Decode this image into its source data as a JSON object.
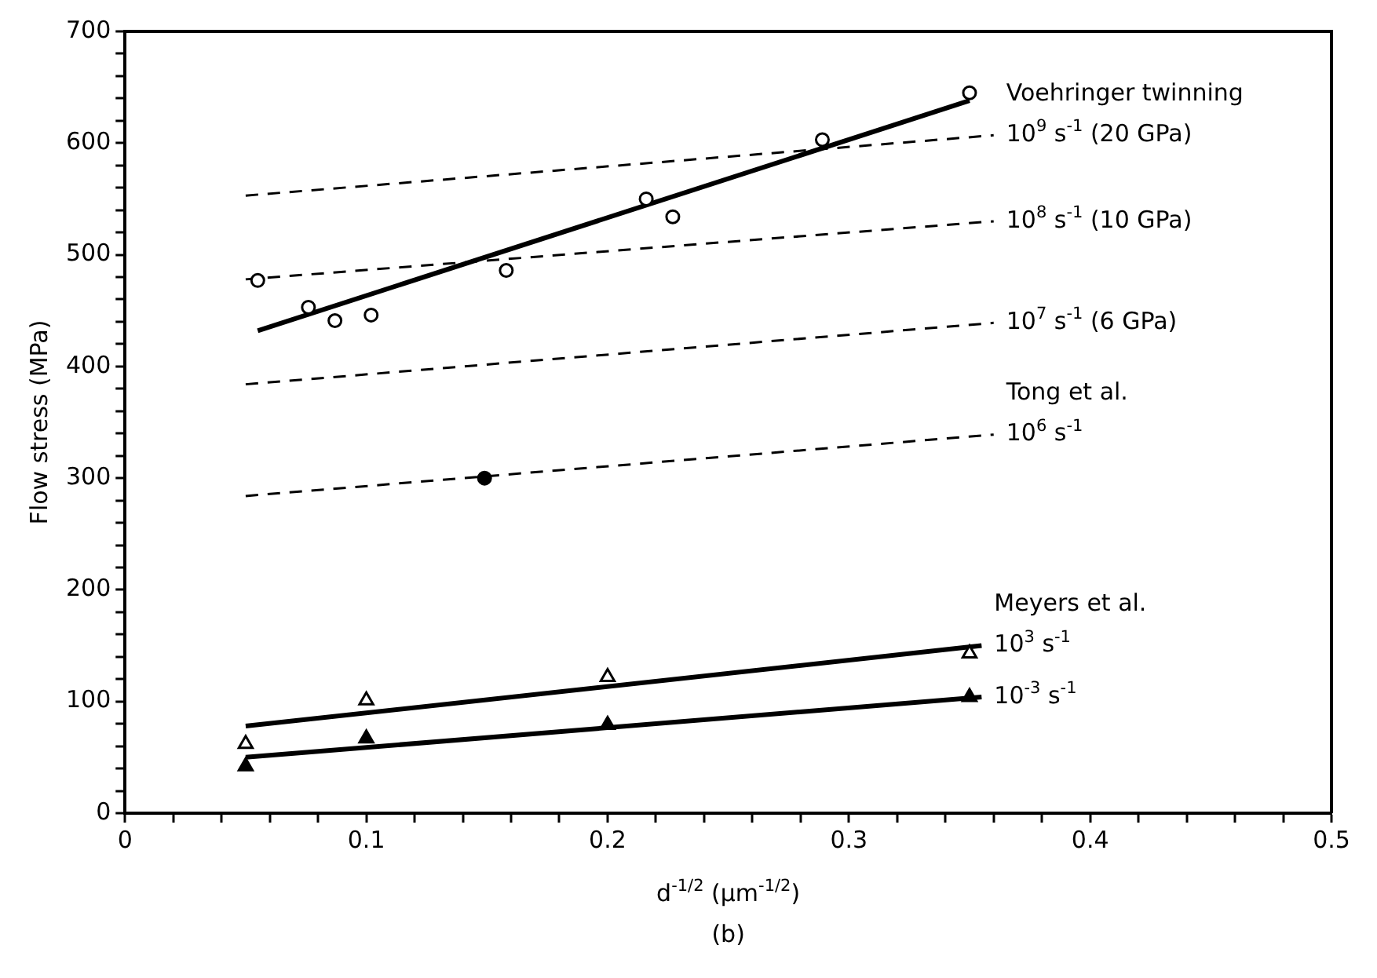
{
  "chart_data": {
    "type": "scatter",
    "ylabel": "Flow stress (MPa)",
    "xlabel": "d$^{-1/2}$ (μm$^{-1/2}$)",
    "xlim": [
      0,
      0.5
    ],
    "ylim": [
      0,
      700
    ],
    "xticks": [
      0,
      {
        "value": 0.02,
        "label": null
      },
      {
        "value": 0.04,
        "label": null
      },
      {
        "value": 0.06,
        "label": null
      },
      {
        "value": 0.08,
        "label": null
      },
      0.1,
      {
        "value": 0.12,
        "label": null
      },
      {
        "value": 0.14,
        "label": null
      },
      {
        "value": 0.16,
        "label": null
      },
      {
        "value": 0.18,
        "label": null
      },
      0.2,
      {
        "value": 0.22,
        "label": null
      },
      {
        "value": 0.24,
        "label": null
      },
      {
        "value": 0.26,
        "label": null
      },
      {
        "value": 0.28,
        "label": null
      },
      0.3,
      {
        "value": 0.32,
        "label": null
      },
      {
        "value": 0.34,
        "label": null
      },
      {
        "value": 0.36,
        "label": null
      },
      {
        "value": 0.38,
        "label": null
      },
      0.4,
      {
        "value": 0.42,
        "label": null
      },
      {
        "value": 0.44,
        "label": null
      },
      {
        "value": 0.46,
        "label": null
      },
      {
        "value": 0.48,
        "label": null
      },
      0.5
    ],
    "yticks": [
      0,
      {
        "value": 20,
        "label": null
      },
      {
        "value": 40,
        "label": null
      },
      {
        "value": 60,
        "label": null
      },
      {
        "value": 80,
        "label": null
      },
      100,
      {
        "value": 120,
        "label": null
      },
      {
        "value": 140,
        "label": null
      },
      {
        "value": 160,
        "label": null
      },
      {
        "value": 180,
        "label": null
      },
      200,
      {
        "value": 220,
        "label": null
      },
      {
        "value": 240,
        "label": null
      },
      {
        "value": 260,
        "label": null
      },
      {
        "value": 280,
        "label": null
      },
      300,
      {
        "value": 320,
        "label": null
      },
      {
        "value": 340,
        "label": null
      },
      {
        "value": 360,
        "label": null
      },
      {
        "value": 380,
        "label": null
      },
      400,
      {
        "value": 420,
        "label": null
      },
      {
        "value": 440,
        "label": null
      },
      {
        "value": 460,
        "label": null
      },
      {
        "value": 480,
        "label": null
      },
      500,
      {
        "value": 520,
        "label": null
      },
      {
        "value": 540,
        "label": null
      },
      {
        "value": 560,
        "label": null
      },
      {
        "value": 580,
        "label": null
      },
      600,
      {
        "value": 620,
        "label": null
      },
      {
        "value": 640,
        "label": null
      },
      {
        "value": 660,
        "label": null
      },
      {
        "value": 680,
        "label": null
      },
      700
    ],
    "grid": false,
    "legend": false,
    "annotations": [
      "(b)"
    ],
    "series": [
      {
        "type": "scatter",
        "marker": "circle",
        "name": "Voehringer twinning",
        "color": "#ffffff",
        "x": [
          0.055,
          0.076,
          0.087,
          0.102,
          0.158,
          0.216,
          0.227,
          0.289,
          0.35
        ],
        "values": [
          477,
          453,
          441,
          446,
          486,
          550,
          534,
          603,
          645
        ]
      },
      {
        "type": "line",
        "marker": "none",
        "line_style": "solid",
        "color": "#000000",
        "x": [
          0.055,
          0.35
        ],
        "values": [
          432,
          638
        ]
      },
      {
        "type": "line",
        "marker": "none",
        "line_style": "dashed",
        "name": "10$^{9}$ s$^{-1}$ (20 GPa)",
        "color": "#000000",
        "x": [
          0.05,
          0.36
        ],
        "values": [
          553,
          607
        ]
      },
      {
        "type": "line",
        "marker": "none",
        "line_style": "dashed",
        "name": "10$^{8}$ s$^{-1}$ (10 GPa)",
        "color": "#000000",
        "x": [
          0.05,
          0.36
        ],
        "values": [
          478,
          530
        ]
      },
      {
        "type": "line",
        "marker": "none",
        "line_style": "dashed",
        "name": "10$^{7}$ s$^{-1}$ (6 GPa)",
        "color": "#000000",
        "x": [
          0.05,
          0.36
        ],
        "values": [
          384,
          439
        ]
      },
      {
        "type": "scatter",
        "marker": "circle",
        "color": "#000000",
        "x": [
          0.149
        ],
        "values": [
          300
        ]
      },
      {
        "type": "line",
        "marker": "none",
        "line_style": "dashed",
        "name": "Tong et al.\n10$^{6}$ s$^{-1}$",
        "color": "#000000",
        "x": [
          0.05,
          0.36
        ],
        "values": [
          284,
          339
        ]
      },
      {
        "type": "scatter",
        "marker": "triangle",
        "name": "Meyers et al.",
        "color": "#ffffff",
        "x": [
          0.05,
          0.1,
          0.2,
          0.35
        ],
        "values": [
          62,
          101,
          122,
          143
        ]
      },
      {
        "type": "scatter",
        "marker": "triangle",
        "color": "#000000",
        "x": [
          0.05,
          0.1,
          0.2,
          0.35
        ],
        "values": [
          42,
          67,
          79,
          104
        ]
      },
      {
        "type": "line",
        "marker": "none",
        "line_style": "solid",
        "name": "10$^{3}$ s$^{-1}$",
        "color": "#000000",
        "x": [
          0.05,
          0.355
        ],
        "values": [
          78,
          150
        ]
      },
      {
        "type": "line",
        "marker": "none",
        "line_style": "solid",
        "name": "10$^{-3}$ s$^{-1}$",
        "color": "#000000",
        "x": [
          0.05,
          0.355
        ],
        "values": [
          50,
          104
        ]
      }
    ]
  }
}
